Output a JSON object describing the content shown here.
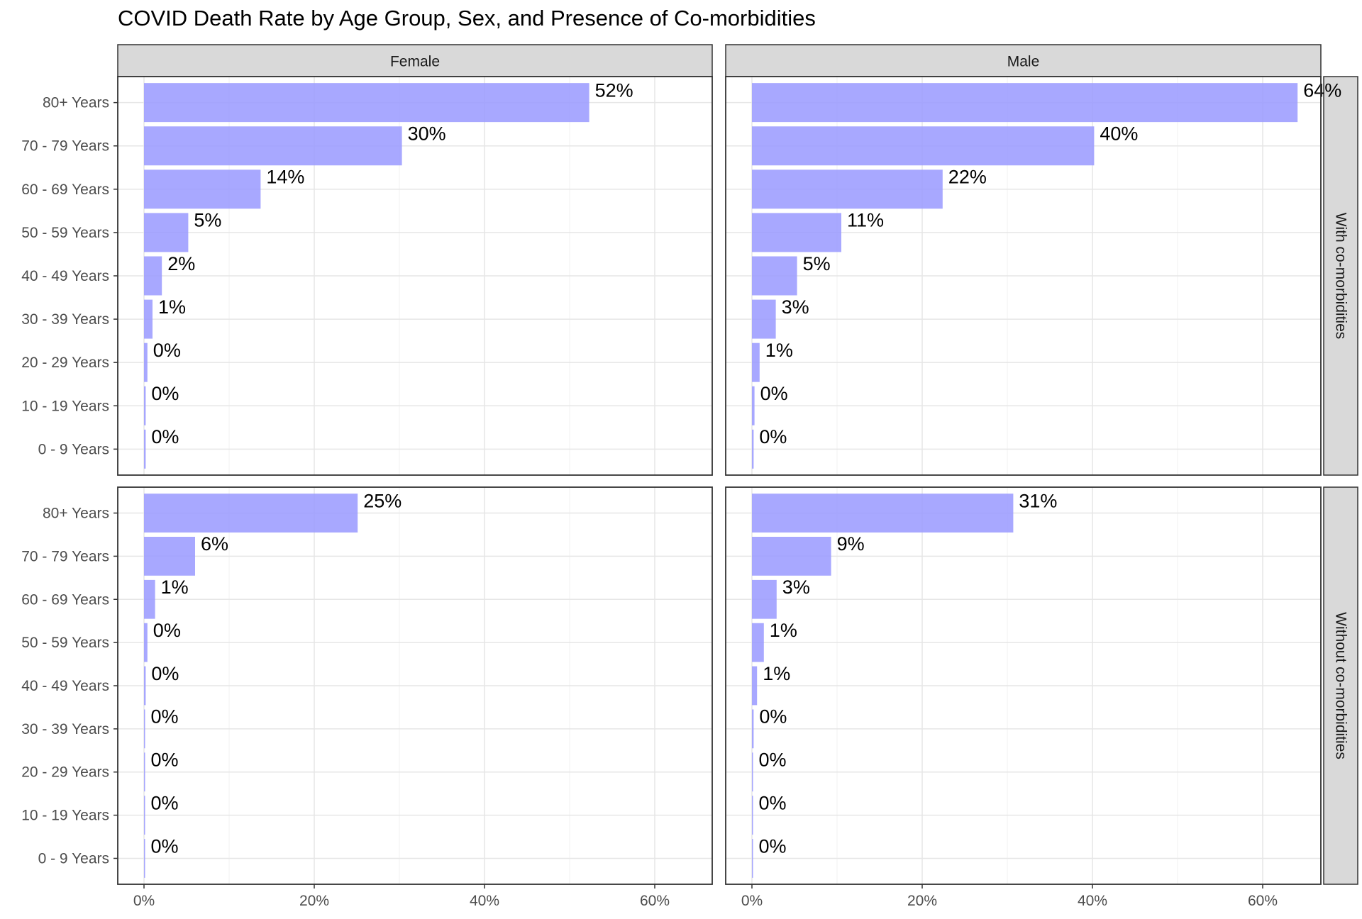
{
  "chart_data": {
    "type": "bar",
    "title": "COVID Death Rate by Age Group, Sex, and Presence of Co-morbidities",
    "orientation": "horizontal",
    "categories": [
      "80+ Years",
      "70 - 79 Years",
      "60 - 69 Years",
      "50 - 59 Years",
      "40 - 49 Years",
      "30 - 39 Years",
      "20 - 29 Years",
      "10 - 19 Years",
      "0 - 9 Years"
    ],
    "x_ticks": [
      "0%",
      "20%",
      "40%",
      "60%"
    ],
    "xlim": [
      0,
      0.67
    ],
    "grid": true,
    "bar_color": "#9999ff",
    "column_facets": [
      "Female",
      "Male"
    ],
    "row_facets": [
      "With co-morbidities",
      "Without co-morbidities"
    ],
    "panels": [
      {
        "sex": "Female",
        "group": "With co-morbidities",
        "values": [
          0.523,
          0.303,
          0.137,
          0.052,
          0.021,
          0.01,
          0.004,
          0.002,
          0.002
        ],
        "labels": [
          "52%",
          "30%",
          "14%",
          "5%",
          "2%",
          "1%",
          "0%",
          "0%",
          "0%"
        ]
      },
      {
        "sex": "Male",
        "group": "With co-morbidities",
        "values": [
          0.641,
          0.402,
          0.224,
          0.105,
          0.053,
          0.028,
          0.009,
          0.003,
          0.002
        ],
        "labels": [
          "64%",
          "40%",
          "22%",
          "11%",
          "5%",
          "3%",
          "1%",
          "0%",
          "0%"
        ]
      },
      {
        "sex": "Female",
        "group": "Without co-morbidities",
        "values": [
          0.251,
          0.06,
          0.013,
          0.004,
          0.002,
          0.001,
          0.001,
          0.001,
          0.001
        ],
        "labels": [
          "25%",
          "6%",
          "1%",
          "0%",
          "0%",
          "0%",
          "0%",
          "0%",
          "0%"
        ]
      },
      {
        "sex": "Male",
        "group": "Without co-morbidities",
        "values": [
          0.307,
          0.093,
          0.029,
          0.014,
          0.006,
          0.002,
          0.001,
          0.001,
          0.001
        ],
        "labels": [
          "31%",
          "9%",
          "3%",
          "1%",
          "1%",
          "0%",
          "0%",
          "0%",
          "0%"
        ]
      }
    ]
  }
}
